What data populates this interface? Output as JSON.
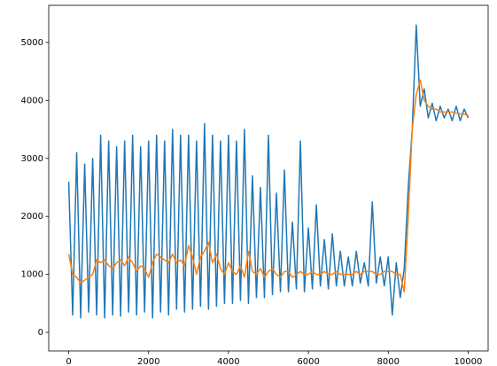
{
  "chart_data": {
    "type": "line",
    "x": [
      0,
      100,
      200,
      300,
      400,
      500,
      600,
      700,
      800,
      900,
      1000,
      1100,
      1200,
      1300,
      1400,
      1500,
      1600,
      1700,
      1800,
      1900,
      2000,
      2100,
      2200,
      2300,
      2400,
      2500,
      2600,
      2700,
      2800,
      2900,
      3000,
      3100,
      3200,
      3300,
      3400,
      3500,
      3600,
      3700,
      3800,
      3900,
      4000,
      4100,
      4200,
      4300,
      4400,
      4500,
      4600,
      4700,
      4800,
      4900,
      5000,
      5100,
      5200,
      5300,
      5400,
      5500,
      5600,
      5700,
      5800,
      5900,
      6000,
      6100,
      6200,
      6300,
      6400,
      6500,
      6600,
      6700,
      6800,
      6900,
      7000,
      7100,
      7200,
      7300,
      7400,
      7500,
      7600,
      7700,
      7800,
      7900,
      8000,
      8100,
      8200,
      8300,
      8400,
      8500,
      8600,
      8700,
      8800,
      8900,
      9000,
      9100,
      9200,
      9300,
      9400,
      9500,
      9600,
      9700,
      9800,
      9900,
      10000
    ],
    "series": [
      {
        "color": "#1f77b4",
        "values": [
          2600,
          300,
          3100,
          250,
          2900,
          350,
          3000,
          300,
          3400,
          250,
          3300,
          300,
          3200,
          280,
          3300,
          350,
          3400,
          300,
          3200,
          350,
          3300,
          250,
          3400,
          350,
          3300,
          300,
          3500,
          400,
          3400,
          350,
          3400,
          400,
          3300,
          450,
          3600,
          400,
          3400,
          450,
          3300,
          500,
          3400,
          500,
          3300,
          550,
          3500,
          500,
          2700,
          600,
          2500,
          600,
          3400,
          650,
          2400,
          700,
          2800,
          700,
          1900,
          750,
          3300,
          700,
          1800,
          750,
          2200,
          800,
          1600,
          750,
          1700,
          800,
          1400,
          800,
          1300,
          800,
          1400,
          850,
          1200,
          800,
          2250,
          850,
          1300,
          800,
          1300,
          300,
          1200,
          600,
          1100,
          2500,
          3500,
          5300,
          3900,
          4200,
          3700,
          3950,
          3650,
          3900,
          3700,
          3850,
          3650,
          3900,
          3650,
          3850,
          3700
        ]
      },
      {
        "color": "#ff7f0e",
        "values": [
          1350,
          1000,
          950,
          850,
          900,
          950,
          1000,
          1250,
          1200,
          1250,
          1150,
          1100,
          1200,
          1250,
          1150,
          1300,
          1200,
          1050,
          1150,
          1100,
          950,
          1200,
          1350,
          1300,
          1250,
          1200,
          1350,
          1200,
          1250,
          1150,
          1500,
          1300,
          1000,
          1300,
          1400,
          1550,
          1200,
          1350,
          1100,
          1000,
          1200,
          1050,
          1000,
          1150,
          950,
          1400,
          1050,
          1000,
          1100,
          950,
          1050,
          1100,
          1000,
          950,
          1050,
          1050,
          950,
          1000,
          1050,
          1000,
          1000,
          1050,
          1000,
          1000,
          1050,
          1000,
          1000,
          1050,
          1000,
          1000,
          1000,
          1000,
          1050,
          1000,
          1050,
          1050,
          1050,
          1000,
          1000,
          1050,
          1050,
          1050,
          1000,
          1000,
          700,
          2000,
          3500,
          4100,
          4350,
          4000,
          3900,
          3850,
          3850,
          3800,
          3800,
          3800,
          3800,
          3780,
          3770,
          3760,
          3750
        ]
      }
    ],
    "xlim": [
      -500,
      10500
    ],
    "ylim": [
      -320,
      5640
    ],
    "xticks": [
      0,
      2000,
      4000,
      6000,
      8000,
      10000
    ],
    "yticks": [
      0,
      1000,
      2000,
      3000,
      4000,
      5000
    ]
  }
}
